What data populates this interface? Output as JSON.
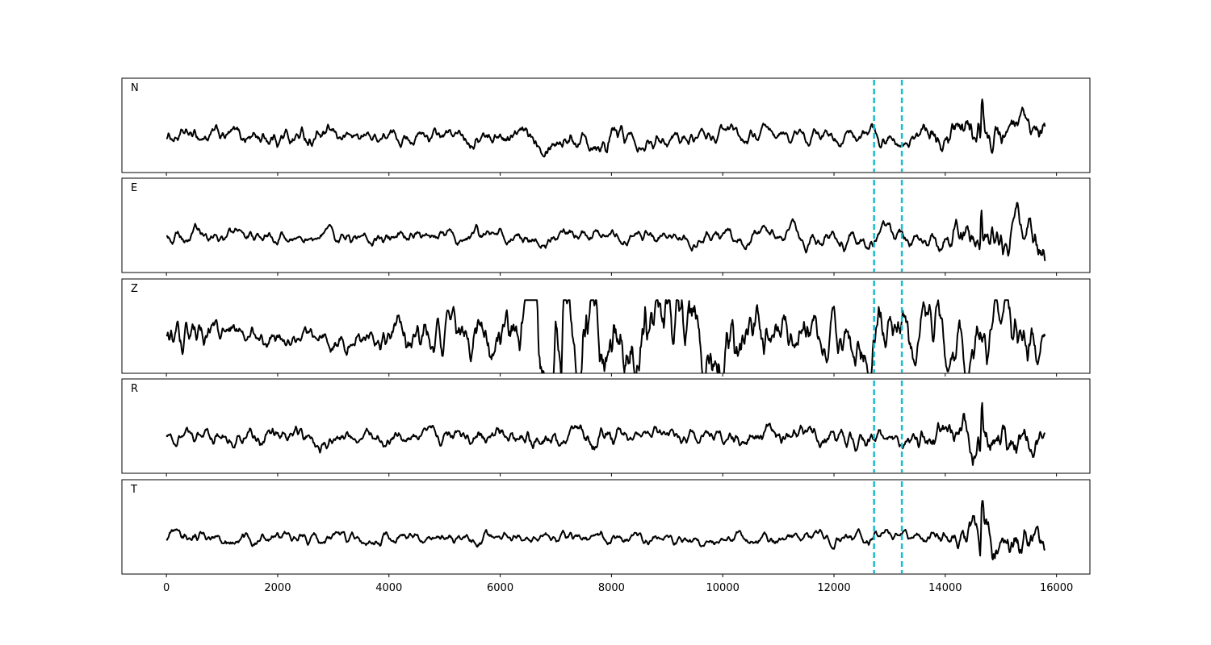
{
  "chart_data": {
    "type": "line",
    "title": "",
    "xlabel": "",
    "ylabel": "",
    "xlim": [
      -800,
      16600
    ],
    "x_ticks": [
      0,
      2000,
      4000,
      6000,
      8000,
      10000,
      12000,
      14000,
      16000
    ],
    "x_tick_labels": [
      "0",
      "2000",
      "4000",
      "6000",
      "8000",
      "10000",
      "12000",
      "14000",
      "16000"
    ],
    "n_samples": 15800,
    "grid": false,
    "legend": "none",
    "picks": [
      12720,
      13220
    ],
    "pick_color": "#17becf",
    "trace_color": "#000000",
    "panels": [
      {
        "label": "N",
        "ylim": [
          -1.0,
          1.0
        ],
        "segments": [
          [
            0,
            0.12
          ],
          [
            2700,
            0.18
          ],
          [
            2900,
            0.14
          ],
          [
            3300,
            0.11
          ],
          [
            5000,
            0.12
          ],
          [
            6900,
            0.17
          ],
          [
            7400,
            0.15
          ],
          [
            8000,
            0.22
          ],
          [
            8400,
            0.14
          ],
          [
            9000,
            0.13
          ],
          [
            12500,
            0.12
          ],
          [
            12700,
            0.18
          ],
          [
            13300,
            0.11
          ],
          [
            13800,
            0.22
          ],
          [
            14600,
            0.35
          ],
          [
            15000,
            0.25
          ],
          [
            15800,
            0.25
          ]
        ],
        "events": [
          [
            14660,
            1.0,
            0.7
          ],
          [
            14630,
            -0.45,
            0.7
          ]
        ]
      },
      {
        "label": "E",
        "ylim": [
          -1.0,
          1.0
        ],
        "segments": [
          [
            0,
            0.12
          ],
          [
            2000,
            0.1
          ],
          [
            4000,
            0.12
          ],
          [
            6000,
            0.1
          ],
          [
            7300,
            0.13
          ],
          [
            8000,
            0.1
          ],
          [
            10000,
            0.12
          ],
          [
            12700,
            0.15
          ],
          [
            13500,
            0.13
          ],
          [
            14400,
            0.3
          ],
          [
            15000,
            0.35
          ],
          [
            15800,
            0.35
          ]
        ],
        "events": [
          [
            14650,
            1.0,
            0.7
          ],
          [
            14620,
            -0.5,
            0.7
          ]
        ]
      },
      {
        "label": "Z",
        "ylim": [
          -1.0,
          1.0
        ],
        "segments": [
          [
            0,
            0.3
          ],
          [
            1000,
            0.2
          ],
          [
            2500,
            0.15
          ],
          [
            3500,
            0.2
          ],
          [
            4700,
            0.35
          ],
          [
            6300,
            0.4
          ],
          [
            6600,
            0.8
          ],
          [
            7800,
            0.6
          ],
          [
            9000,
            0.65
          ],
          [
            10500,
            0.55
          ],
          [
            11000,
            0.35
          ],
          [
            12000,
            0.4
          ],
          [
            12700,
            0.5
          ],
          [
            13300,
            0.4
          ],
          [
            14000,
            0.45
          ],
          [
            15800,
            0.45
          ]
        ],
        "events": [
          [
            7100,
            -0.9,
            0.8
          ],
          [
            7550,
            0.85,
            0.8
          ]
        ]
      },
      {
        "label": "R",
        "ylim": [
          -1.0,
          1.0
        ],
        "segments": [
          [
            0,
            0.12
          ],
          [
            2700,
            0.16
          ],
          [
            2900,
            0.15
          ],
          [
            3300,
            0.11
          ],
          [
            5000,
            0.13
          ],
          [
            7000,
            0.16
          ],
          [
            8000,
            0.18
          ],
          [
            8400,
            0.13
          ],
          [
            9000,
            0.12
          ],
          [
            12700,
            0.18
          ],
          [
            13300,
            0.12
          ],
          [
            13800,
            0.25
          ],
          [
            14500,
            0.35
          ],
          [
            15800,
            0.25
          ]
        ],
        "events": [
          [
            14660,
            1.0,
            0.7
          ],
          [
            14630,
            -0.5,
            0.7
          ]
        ]
      },
      {
        "label": "T",
        "ylim": [
          -1.0,
          1.0
        ],
        "segments": [
          [
            0,
            0.12
          ],
          [
            2000,
            0.1
          ],
          [
            5000,
            0.1
          ],
          [
            8000,
            0.09
          ],
          [
            12500,
            0.1
          ],
          [
            12700,
            0.13
          ],
          [
            13300,
            0.1
          ],
          [
            14000,
            0.12
          ],
          [
            14700,
            0.35
          ],
          [
            15000,
            0.3
          ],
          [
            15800,
            0.3
          ]
        ],
        "events": [
          [
            14670,
            1.0,
            0.7
          ],
          [
            14630,
            -0.85,
            0.7
          ]
        ]
      }
    ]
  }
}
